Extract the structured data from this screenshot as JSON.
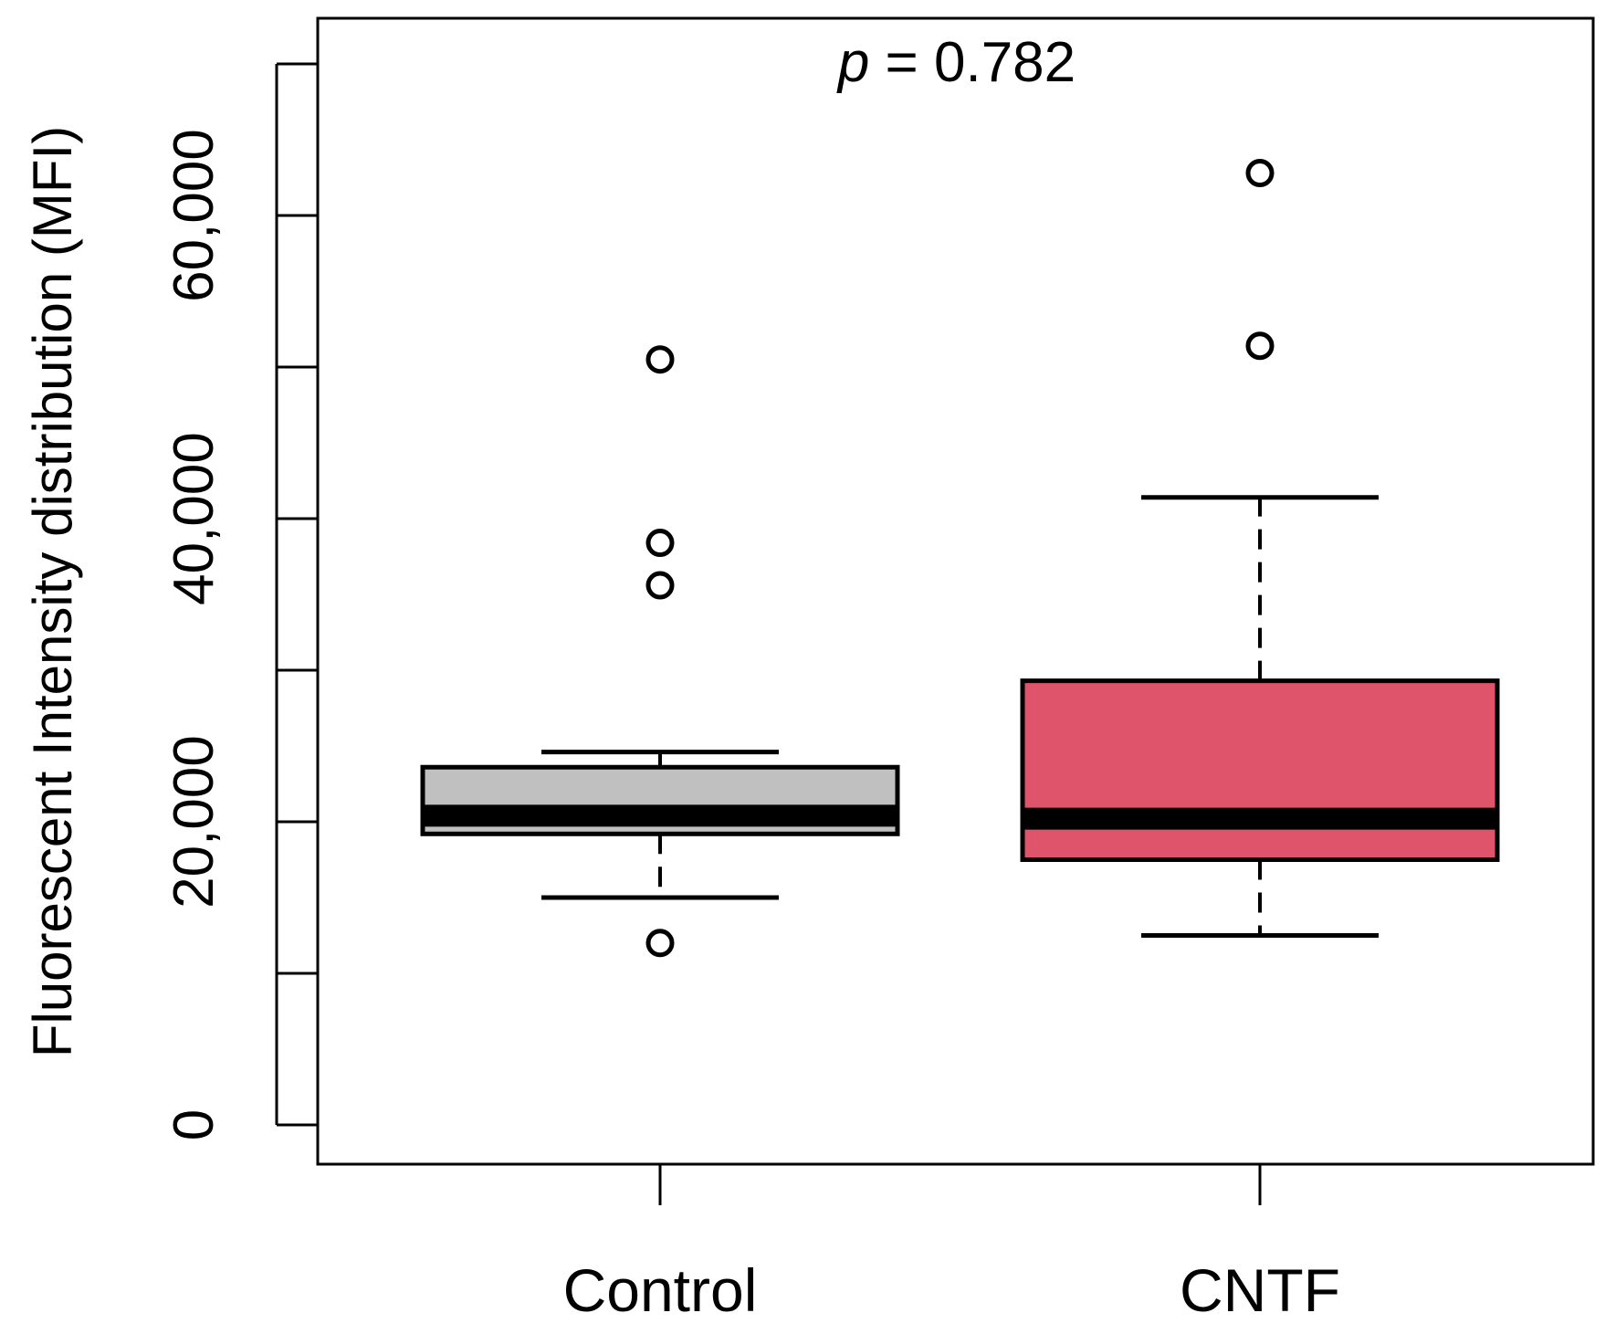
{
  "chart_data": {
    "type": "boxplot",
    "title": "",
    "xlabel": "",
    "ylabel": "Fluorescent Intensity distribution (MFI)",
    "ylim": [
      0,
      70000
    ],
    "yticks": [
      0,
      10000,
      20000,
      30000,
      40000,
      50000,
      60000,
      70000
    ],
    "ytick_labels": [
      "0",
      "",
      "20,000",
      "",
      "40,000",
      "",
      "60,000",
      ""
    ],
    "annotation": {
      "italic": "p",
      "rest": " = 0.782"
    },
    "categories": [
      "Control",
      "CNTF"
    ],
    "series": [
      {
        "name": "Control",
        "color": "#c0c0c0",
        "whisker_low": 15000,
        "q1": 19200,
        "median": 20400,
        "q3": 23600,
        "whisker_high": 24600,
        "outliers": [
          12000,
          35600,
          38400,
          50500
        ]
      },
      {
        "name": "CNTF",
        "color": "#df536b",
        "whisker_low": 12500,
        "q1": 17500,
        "median": 20200,
        "q3": 29300,
        "whisker_high": 41400,
        "outliers": [
          51400,
          62800
        ]
      }
    ]
  }
}
